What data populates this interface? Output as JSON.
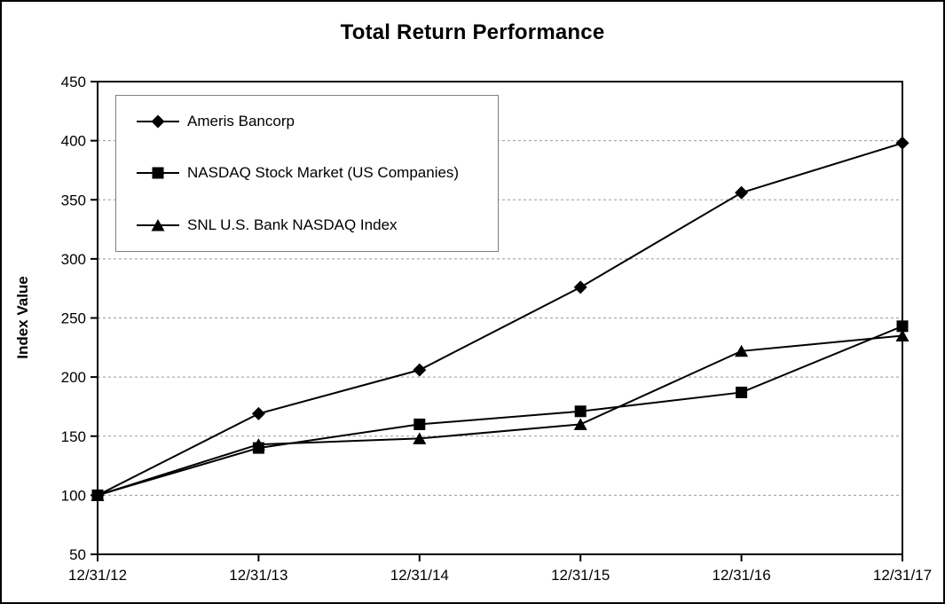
{
  "chart_data": {
    "type": "line",
    "title": "Total Return Performance",
    "xlabel": "",
    "ylabel": "Index Value",
    "categories": [
      "12/31/12",
      "12/31/13",
      "12/31/14",
      "12/31/15",
      "12/31/16",
      "12/31/17"
    ],
    "series": [
      {
        "name": "Ameris Bancorp",
        "marker": "diamond",
        "values": [
          100,
          169,
          206,
          276,
          356,
          398
        ]
      },
      {
        "name": "NASDAQ Stock Market (US Companies)",
        "marker": "square",
        "values": [
          100,
          140,
          160,
          171,
          187,
          243
        ]
      },
      {
        "name": "SNL U.S. Bank NASDAQ Index",
        "marker": "triangle",
        "values": [
          100,
          143,
          148,
          160,
          222,
          235
        ]
      }
    ],
    "ylim": [
      50,
      450
    ],
    "ytick_step": 50,
    "yticks": [
      50,
      100,
      150,
      200,
      250,
      300,
      350,
      400,
      450
    ],
    "grid": "horizontal-dashed",
    "legend_position": "top-left-inside",
    "colors": {
      "line": "#000000",
      "marker": "#000000",
      "grid": "#999999",
      "axis": "#000000",
      "text": "#000000",
      "legend_border": "#7f7f7f",
      "background": "#ffffff"
    }
  }
}
